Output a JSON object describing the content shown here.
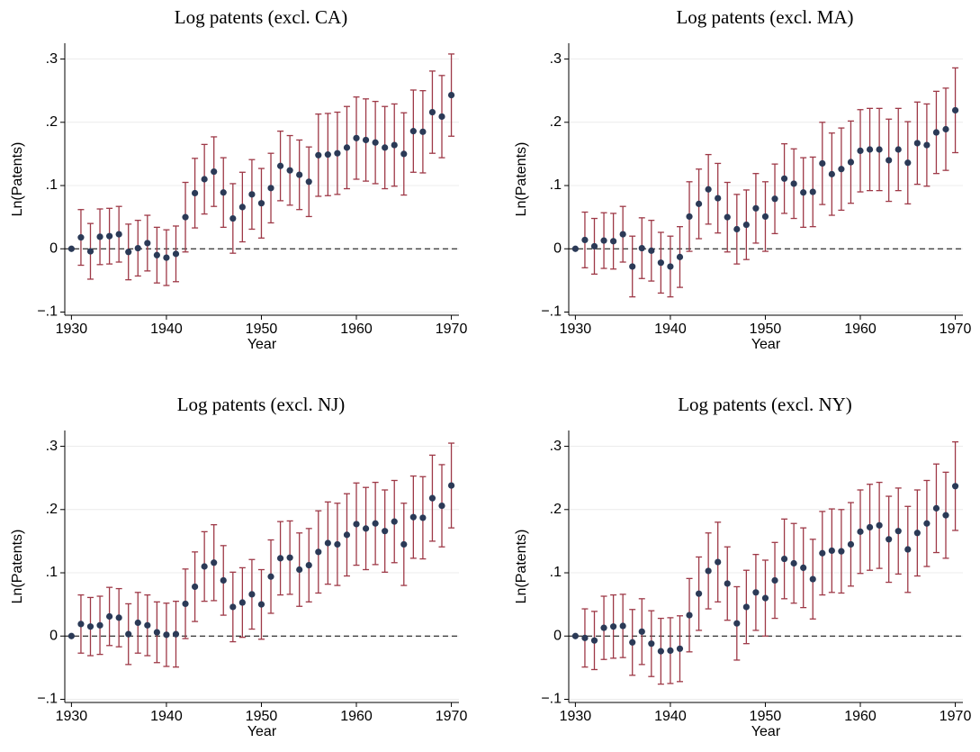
{
  "chart_data": [
    {
      "type": "scatter",
      "title": "Log patents (excl. CA)",
      "x_label": "Year",
      "y_label": "Ln(Patents)",
      "x": [
        1930,
        1931,
        1932,
        1933,
        1934,
        1935,
        1936,
        1937,
        1938,
        1939,
        1940,
        1941,
        1942,
        1943,
        1944,
        1945,
        1946,
        1947,
        1948,
        1949,
        1950,
        1951,
        1952,
        1953,
        1954,
        1955,
        1956,
        1957,
        1958,
        1959,
        1960,
        1961,
        1962,
        1963,
        1964,
        1965,
        1966,
        1967,
        1968,
        1969,
        1970
      ],
      "series": [
        {
          "name": "Ln(Patents)",
          "color": "#2b3a57",
          "error_color": "#9e3947",
          "values": [
            0,
            0.018,
            -0.004,
            0.019,
            0.02,
            0.023,
            -0.005,
            0.001,
            0.009,
            -0.01,
            -0.014,
            -0.008,
            0.05,
            0.088,
            0.11,
            0.122,
            0.089,
            0.048,
            0.066,
            0.086,
            0.072,
            0.096,
            0.131,
            0.124,
            0.117,
            0.106,
            0.148,
            0.149,
            0.151,
            0.16,
            0.175,
            0.172,
            0.168,
            0.16,
            0.164,
            0.15,
            0.186,
            0.185,
            0.216,
            0.209,
            0.243
          ],
          "errors": [
            0,
            0.044,
            0.044,
            0.044,
            0.044,
            0.044,
            0.044,
            0.044,
            0.044,
            0.044,
            0.044,
            0.044,
            0.055,
            0.055,
            0.055,
            0.055,
            0.055,
            0.055,
            0.055,
            0.055,
            0.055,
            0.055,
            0.055,
            0.055,
            0.055,
            0.055,
            0.065,
            0.065,
            0.065,
            0.065,
            0.065,
            0.065,
            0.065,
            0.065,
            0.065,
            0.065,
            0.065,
            0.065,
            0.065,
            0.065,
            0.065
          ]
        }
      ],
      "xlim": [
        1929.3,
        1970.8
      ],
      "xticks": [
        1930,
        1940,
        1950,
        1960,
        1970
      ],
      "ylim": [
        -0.105,
        0.325
      ],
      "yticks": [
        {
          "value": -0.1,
          "label": "−.1"
        },
        0,
        {
          "value": 0.1,
          "label": ".1"
        },
        {
          "value": 0.2,
          "label": ".2"
        },
        {
          "value": 0.3,
          "label": ".3"
        }
      ],
      "grid": true
    },
    {
      "type": "scatter",
      "title": "Log patents (excl. MA)",
      "x_label": "Year",
      "y_label": "Ln(Patents)",
      "x": [
        1930,
        1931,
        1932,
        1933,
        1934,
        1935,
        1936,
        1937,
        1938,
        1939,
        1940,
        1941,
        1942,
        1943,
        1944,
        1945,
        1946,
        1947,
        1948,
        1949,
        1950,
        1951,
        1952,
        1953,
        1954,
        1955,
        1956,
        1957,
        1958,
        1959,
        1960,
        1961,
        1962,
        1963,
        1964,
        1965,
        1966,
        1967,
        1968,
        1969,
        1970
      ],
      "series": [
        {
          "name": "Ln(Patents)",
          "color": "#2b3a57",
          "error_color": "#9e3947",
          "values": [
            0,
            0.014,
            0.004,
            0.013,
            0.012,
            0.023,
            -0.028,
            0.001,
            -0.003,
            -0.022,
            -0.028,
            -0.013,
            0.051,
            0.071,
            0.094,
            0.08,
            0.05,
            0.031,
            0.038,
            0.064,
            0.051,
            0.079,
            0.111,
            0.103,
            0.089,
            0.09,
            0.135,
            0.118,
            0.126,
            0.137,
            0.155,
            0.157,
            0.157,
            0.14,
            0.157,
            0.136,
            0.167,
            0.164,
            0.184,
            0.189,
            0.219
          ],
          "errors": [
            0,
            0.044,
            0.044,
            0.044,
            0.044,
            0.044,
            0.048,
            0.048,
            0.048,
            0.048,
            0.048,
            0.048,
            0.055,
            0.055,
            0.055,
            0.055,
            0.055,
            0.055,
            0.055,
            0.055,
            0.055,
            0.055,
            0.055,
            0.055,
            0.055,
            0.055,
            0.065,
            0.065,
            0.065,
            0.065,
            0.065,
            0.065,
            0.065,
            0.065,
            0.065,
            0.065,
            0.065,
            0.065,
            0.065,
            0.065,
            0.067
          ]
        }
      ],
      "xlim": [
        1929.3,
        1970.8
      ],
      "xticks": [
        1930,
        1940,
        1950,
        1960,
        1970
      ],
      "ylim": [
        -0.105,
        0.325
      ],
      "yticks": [
        {
          "value": -0.1,
          "label": "−.1"
        },
        0,
        {
          "value": 0.1,
          "label": ".1"
        },
        {
          "value": 0.2,
          "label": ".2"
        },
        {
          "value": 0.3,
          "label": ".3"
        }
      ],
      "grid": true
    },
    {
      "type": "scatter",
      "title": "Log patents (excl. NJ)",
      "x_label": "Year",
      "y_label": "Ln(Patents)",
      "x": [
        1930,
        1931,
        1932,
        1933,
        1934,
        1935,
        1936,
        1937,
        1938,
        1939,
        1940,
        1941,
        1942,
        1943,
        1944,
        1945,
        1946,
        1947,
        1948,
        1949,
        1950,
        1951,
        1952,
        1953,
        1954,
        1955,
        1956,
        1957,
        1958,
        1959,
        1960,
        1961,
        1962,
        1963,
        1964,
        1965,
        1966,
        1967,
        1968,
        1969,
        1970
      ],
      "series": [
        {
          "name": "Ln(Patents)",
          "color": "#2b3a57",
          "error_color": "#9e3947",
          "values": [
            0,
            0.019,
            0.015,
            0.017,
            0.031,
            0.029,
            0.003,
            0.021,
            0.017,
            0.006,
            0.002,
            0.003,
            0.051,
            0.078,
            0.11,
            0.116,
            0.088,
            0.046,
            0.053,
            0.066,
            0.05,
            0.094,
            0.123,
            0.124,
            0.105,
            0.112,
            0.133,
            0.147,
            0.145,
            0.16,
            0.177,
            0.17,
            0.178,
            0.166,
            0.181,
            0.145,
            0.188,
            0.187,
            0.218,
            0.206,
            0.238
          ],
          "errors": [
            0,
            0.046,
            0.046,
            0.046,
            0.046,
            0.046,
            0.048,
            0.048,
            0.048,
            0.048,
            0.05,
            0.052,
            0.055,
            0.055,
            0.055,
            0.06,
            0.055,
            0.055,
            0.055,
            0.055,
            0.055,
            0.058,
            0.058,
            0.058,
            0.058,
            0.058,
            0.065,
            0.065,
            0.065,
            0.065,
            0.065,
            0.065,
            0.065,
            0.065,
            0.065,
            0.065,
            0.065,
            0.065,
            0.068,
            0.065,
            0.067
          ]
        }
      ],
      "xlim": [
        1929.3,
        1970.8
      ],
      "xticks": [
        1930,
        1940,
        1950,
        1960,
        1970
      ],
      "ylim": [
        -0.105,
        0.325
      ],
      "yticks": [
        {
          "value": -0.1,
          "label": "−.1"
        },
        0,
        {
          "value": 0.1,
          "label": ".1"
        },
        {
          "value": 0.2,
          "label": ".2"
        },
        {
          "value": 0.3,
          "label": ".3"
        }
      ],
      "grid": true
    },
    {
      "type": "scatter",
      "title": "Log patents (excl. NY)",
      "x_label": "Year",
      "y_label": "Ln(Patents)",
      "x": [
        1930,
        1931,
        1932,
        1933,
        1934,
        1935,
        1936,
        1937,
        1938,
        1939,
        1940,
        1941,
        1942,
        1943,
        1944,
        1945,
        1946,
        1947,
        1948,
        1949,
        1950,
        1951,
        1952,
        1953,
        1954,
        1955,
        1956,
        1957,
        1958,
        1959,
        1960,
        1961,
        1962,
        1963,
        1964,
        1965,
        1966,
        1967,
        1968,
        1969,
        1970
      ],
      "series": [
        {
          "name": "Ln(Patents)",
          "color": "#2b3a57",
          "error_color": "#9e3947",
          "values": [
            0,
            -0.003,
            -0.007,
            0.013,
            0.015,
            0.016,
            -0.01,
            0.007,
            -0.012,
            -0.024,
            -0.023,
            -0.02,
            0.033,
            0.067,
            0.103,
            0.117,
            0.083,
            0.02,
            0.046,
            0.069,
            0.06,
            0.088,
            0.122,
            0.115,
            0.108,
            0.09,
            0.131,
            0.135,
            0.134,
            0.145,
            0.165,
            0.172,
            0.175,
            0.153,
            0.166,
            0.137,
            0.163,
            0.178,
            0.202,
            0.191,
            0.237
          ],
          "errors": [
            0,
            0.046,
            0.046,
            0.05,
            0.05,
            0.05,
            0.052,
            0.052,
            0.052,
            0.052,
            0.052,
            0.052,
            0.058,
            0.058,
            0.06,
            0.063,
            0.058,
            0.058,
            0.058,
            0.06,
            0.06,
            0.06,
            0.063,
            0.063,
            0.063,
            0.063,
            0.066,
            0.066,
            0.066,
            0.066,
            0.066,
            0.068,
            0.068,
            0.068,
            0.068,
            0.068,
            0.068,
            0.068,
            0.07,
            0.068,
            0.07
          ]
        }
      ],
      "xlim": [
        1929.3,
        1970.8
      ],
      "xticks": [
        1930,
        1940,
        1950,
        1960,
        1970
      ],
      "ylim": [
        -0.105,
        0.325
      ],
      "yticks": [
        {
          "value": -0.1,
          "label": "−.1"
        },
        0,
        {
          "value": 0.1,
          "label": ".1"
        },
        {
          "value": 0.2,
          "label": ".2"
        },
        {
          "value": 0.3,
          "label": ".3"
        }
      ],
      "grid": true
    }
  ]
}
